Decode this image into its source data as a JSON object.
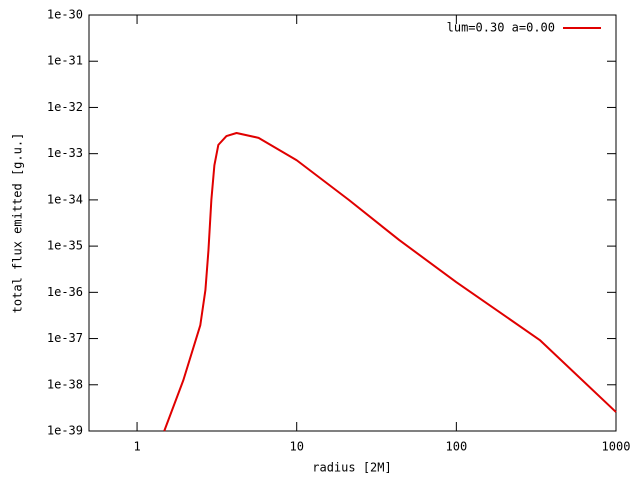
{
  "chart_data": {
    "type": "line",
    "xlabel": "radius [2M]",
    "ylabel": "total flux emitted [g.u.]",
    "xscale": "log",
    "yscale": "log",
    "grid": false,
    "legend": "top-right",
    "xlim": [
      0.5,
      1000
    ],
    "ylim": [
      1e-39,
      1e-30
    ],
    "xticks": [
      1,
      10,
      100,
      1000
    ],
    "yticks": [
      1e-39,
      1e-38,
      1e-37,
      1e-36,
      1e-35,
      1e-34,
      1e-33,
      1e-32,
      1e-31,
      1e-30
    ],
    "x": [
      1.48,
      1.95,
      2.49,
      2.68,
      2.8,
      2.92,
      3.05,
      3.23,
      3.63,
      4.2,
      5.77,
      10,
      21.2,
      43.9,
      100,
      333,
      1000
    ],
    "series": [
      {
        "name": "lum=0.30 a=0.00",
        "color": "#e00000",
        "values": [
          1e-39,
          1.26e-38,
          1.95e-37,
          1.12e-36,
          8.1e-36,
          1e-34,
          5.6e-34,
          1.55e-33,
          2.4e-33,
          2.8e-33,
          2.2e-33,
          7.2e-34,
          1e-34,
          1.35e-35,
          1.66e-36,
          9.3e-38,
          2.57e-39
        ]
      }
    ]
  }
}
